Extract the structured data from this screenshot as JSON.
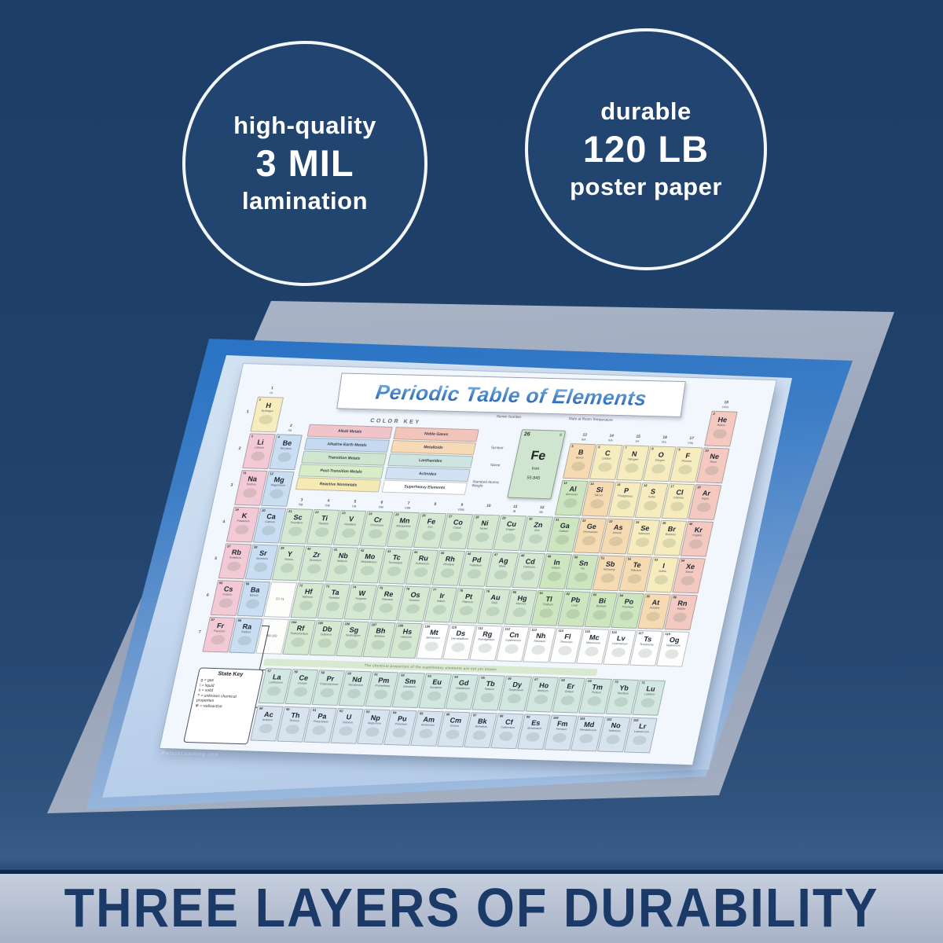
{
  "badges": {
    "left": {
      "line1": "high-quality",
      "line2": "3 MIL",
      "line3": "lamination"
    },
    "right": {
      "line1": "durable",
      "line2": "120 LB",
      "line3": "poster paper"
    }
  },
  "footer": {
    "headline": "THREE LAYERS OF DURABILITY"
  },
  "colors": {
    "background_navy": "#1d3e68",
    "band": "#b5bfd1",
    "band_text": "#1c3a68",
    "circle_ring": "#f4f7fa",
    "sheet_blue": "#2b74c5",
    "sheet_gray": "#9aa5ba",
    "sheet_pale": "#c2d6ee",
    "poster_bg": "#f2f7fd",
    "title_blue": "#2e6cb5"
  },
  "poster": {
    "title": "Periodic Table of Elements",
    "watermark": "PalaceLearning.com",
    "note": "The chemical properties of the superheavy elements are not yet known",
    "color_key": {
      "title": "COLOR KEY",
      "left": [
        {
          "label": "Alkali Metals",
          "color": "#f0c4c9"
        },
        {
          "label": "Alkaline Earth Metals",
          "color": "#c5daf1"
        },
        {
          "label": "Transition Metals",
          "color": "#cfe5cf"
        },
        {
          "label": "Post-Transition Metals",
          "color": "#d8ecc8"
        },
        {
          "label": "Reactive Nonmetals",
          "color": "#f6e9b4"
        }
      ],
      "right": [
        {
          "label": "Noble Gases",
          "color": "#f2c4ba"
        },
        {
          "label": "Metalloids",
          "color": "#f7d9b5"
        },
        {
          "label": "Lanthanides",
          "color": "#cde4e0"
        },
        {
          "label": "Actinides",
          "color": "#d3e2f2"
        },
        {
          "label": "Superheavy Elements",
          "color": "#ffffff"
        }
      ]
    },
    "legend": {
      "atomic_number_label": "Atomic Number",
      "state_label": "State at Room Temperature",
      "symbol_label": "Symbol",
      "name_label": "Name",
      "weight_label": "Standard Atomic Weight",
      "sample": {
        "number": "26",
        "state": "s",
        "symbol": "Fe",
        "name": "Iron",
        "weight": "55.845"
      }
    },
    "state_key": {
      "title": "State Key",
      "items": [
        "g = gas",
        "l = liquid",
        "s = solid",
        "? = unknown chemical properties",
        "☢ = radioactive"
      ]
    },
    "group_headers": [
      [
        "1",
        "IA"
      ],
      [
        "2",
        "IIA"
      ],
      [
        "3",
        "IIIB"
      ],
      [
        "4",
        "IVB"
      ],
      [
        "5",
        "VB"
      ],
      [
        "6",
        "VIB"
      ],
      [
        "7",
        "VIIB"
      ],
      [
        "8",
        ""
      ],
      [
        "9",
        "VIIIB"
      ],
      [
        "10",
        ""
      ],
      [
        "11",
        "IB"
      ],
      [
        "12",
        "IIB"
      ],
      [
        "13",
        "IIIA"
      ],
      [
        "14",
        "IVA"
      ],
      [
        "15",
        "VA"
      ],
      [
        "16",
        "VIA"
      ],
      [
        "17",
        "VIIA"
      ],
      [
        "18",
        "VIIIA"
      ]
    ],
    "periods": [
      "1",
      "2",
      "3",
      "4",
      "5",
      "6",
      "7"
    ],
    "gap_labels": [
      "57-71",
      "89-103"
    ],
    "category_colors": {
      "a": "#f2c9d4",
      "e": "#c9def3",
      "t": "#d5e8d2",
      "p": "#cde6bf",
      "m": "#f6dbb2",
      "n": "#f7ecbe",
      "g": "#f3c9c0",
      "h": "#fdfefd",
      "la": "#d2e7e0",
      "ac": "#d7e4f0"
    },
    "elements": [
      [
        1,
        "H",
        "Hydrogen",
        1,
        1,
        "n"
      ],
      [
        2,
        "He",
        "Helium",
        18,
        1,
        "g"
      ],
      [
        3,
        "Li",
        "Lithium",
        1,
        2,
        "a"
      ],
      [
        4,
        "Be",
        "Beryllium",
        2,
        2,
        "e"
      ],
      [
        5,
        "B",
        "Boron",
        13,
        2,
        "m"
      ],
      [
        6,
        "C",
        "Carbon",
        14,
        2,
        "n"
      ],
      [
        7,
        "N",
        "Nitrogen",
        15,
        2,
        "n"
      ],
      [
        8,
        "O",
        "Oxygen",
        16,
        2,
        "n"
      ],
      [
        9,
        "F",
        "Fluorine",
        17,
        2,
        "n"
      ],
      [
        10,
        "Ne",
        "Neon",
        18,
        2,
        "g"
      ],
      [
        11,
        "Na",
        "Sodium",
        1,
        3,
        "a"
      ],
      [
        12,
        "Mg",
        "Magnesium",
        2,
        3,
        "e"
      ],
      [
        13,
        "Al",
        "Aluminum",
        13,
        3,
        "p"
      ],
      [
        14,
        "Si",
        "Silicon",
        14,
        3,
        "m"
      ],
      [
        15,
        "P",
        "Phosphorus",
        15,
        3,
        "n"
      ],
      [
        16,
        "S",
        "Sulfur",
        16,
        3,
        "n"
      ],
      [
        17,
        "Cl",
        "Chlorine",
        17,
        3,
        "n"
      ],
      [
        18,
        "Ar",
        "Argon",
        18,
        3,
        "g"
      ],
      [
        19,
        "K",
        "Potassium",
        1,
        4,
        "a"
      ],
      [
        20,
        "Ca",
        "Calcium",
        2,
        4,
        "e"
      ],
      [
        21,
        "Sc",
        "Scandium",
        3,
        4,
        "t"
      ],
      [
        22,
        "Ti",
        "Titanium",
        4,
        4,
        "t"
      ],
      [
        23,
        "V",
        "Vanadium",
        5,
        4,
        "t"
      ],
      [
        24,
        "Cr",
        "Chromium",
        6,
        4,
        "t"
      ],
      [
        25,
        "Mn",
        "Manganese",
        7,
        4,
        "t"
      ],
      [
        26,
        "Fe",
        "Iron",
        8,
        4,
        "t"
      ],
      [
        27,
        "Co",
        "Cobalt",
        9,
        4,
        "t"
      ],
      [
        28,
        "Ni",
        "Nickel",
        10,
        4,
        "t"
      ],
      [
        29,
        "Cu",
        "Copper",
        11,
        4,
        "t"
      ],
      [
        30,
        "Zn",
        "Zinc",
        12,
        4,
        "t"
      ],
      [
        31,
        "Ga",
        "Gallium",
        13,
        4,
        "p"
      ],
      [
        32,
        "Ge",
        "Germanium",
        14,
        4,
        "m"
      ],
      [
        33,
        "As",
        "Arsenic",
        15,
        4,
        "m"
      ],
      [
        34,
        "Se",
        "Selenium",
        16,
        4,
        "n"
      ],
      [
        35,
        "Br",
        "Bromine",
        17,
        4,
        "n"
      ],
      [
        36,
        "Kr",
        "Krypton",
        18,
        4,
        "g"
      ],
      [
        37,
        "Rb",
        "Rubidium",
        1,
        5,
        "a"
      ],
      [
        38,
        "Sr",
        "Strontium",
        2,
        5,
        "e"
      ],
      [
        39,
        "Y",
        "Yttrium",
        3,
        5,
        "t"
      ],
      [
        40,
        "Zr",
        "Zirconium",
        4,
        5,
        "t"
      ],
      [
        41,
        "Nb",
        "Niobium",
        5,
        5,
        "t"
      ],
      [
        42,
        "Mo",
        "Molybdenum",
        6,
        5,
        "t"
      ],
      [
        43,
        "Tc",
        "Technetium",
        7,
        5,
        "t"
      ],
      [
        44,
        "Ru",
        "Ruthenium",
        8,
        5,
        "t"
      ],
      [
        45,
        "Rh",
        "Rhodium",
        9,
        5,
        "t"
      ],
      [
        46,
        "Pd",
        "Palladium",
        10,
        5,
        "t"
      ],
      [
        47,
        "Ag",
        "Silver",
        11,
        5,
        "t"
      ],
      [
        48,
        "Cd",
        "Cadmium",
        12,
        5,
        "t"
      ],
      [
        49,
        "In",
        "Indium",
        13,
        5,
        "p"
      ],
      [
        50,
        "Sn",
        "Tin",
        14,
        5,
        "p"
      ],
      [
        51,
        "Sb",
        "Antimony",
        15,
        5,
        "m"
      ],
      [
        52,
        "Te",
        "Tellurium",
        16,
        5,
        "m"
      ],
      [
        53,
        "I",
        "Iodine",
        17,
        5,
        "n"
      ],
      [
        54,
        "Xe",
        "Xenon",
        18,
        5,
        "g"
      ],
      [
        55,
        "Cs",
        "Cesium",
        1,
        6,
        "a"
      ],
      [
        56,
        "Ba",
        "Barium",
        2,
        6,
        "e"
      ],
      [
        72,
        "Hf",
        "Hafnium",
        4,
        6,
        "t"
      ],
      [
        73,
        "Ta",
        "Tantalum",
        5,
        6,
        "t"
      ],
      [
        74,
        "W",
        "Tungsten",
        6,
        6,
        "t"
      ],
      [
        75,
        "Re",
        "Rhenium",
        7,
        6,
        "t"
      ],
      [
        76,
        "Os",
        "Osmium",
        8,
        6,
        "t"
      ],
      [
        77,
        "Ir",
        "Iridium",
        9,
        6,
        "t"
      ],
      [
        78,
        "Pt",
        "Platinum",
        10,
        6,
        "t"
      ],
      [
        79,
        "Au",
        "Gold",
        11,
        6,
        "t"
      ],
      [
        80,
        "Hg",
        "Mercury",
        12,
        6,
        "t"
      ],
      [
        81,
        "Tl",
        "Thallium",
        13,
        6,
        "p"
      ],
      [
        82,
        "Pb",
        "Lead",
        14,
        6,
        "p"
      ],
      [
        83,
        "Bi",
        "Bismuth",
        15,
        6,
        "p"
      ],
      [
        84,
        "Po",
        "Polonium",
        16,
        6,
        "p"
      ],
      [
        85,
        "At",
        "Astatine",
        17,
        6,
        "m"
      ],
      [
        86,
        "Rn",
        "Radon",
        18,
        6,
        "g"
      ],
      [
        87,
        "Fr",
        "Francium",
        1,
        7,
        "a"
      ],
      [
        88,
        "Ra",
        "Radium",
        2,
        7,
        "e"
      ],
      [
        104,
        "Rf",
        "Rutherfordium",
        4,
        7,
        "t"
      ],
      [
        105,
        "Db",
        "Dubnium",
        5,
        7,
        "t"
      ],
      [
        106,
        "Sg",
        "Seaborgium",
        6,
        7,
        "t"
      ],
      [
        107,
        "Bh",
        "Bohrium",
        7,
        7,
        "t"
      ],
      [
        108,
        "Hs",
        "Hassium",
        8,
        7,
        "t"
      ],
      [
        109,
        "Mt",
        "Meitnerium",
        9,
        7,
        "h"
      ],
      [
        110,
        "Ds",
        "Darmstadtium",
        10,
        7,
        "h"
      ],
      [
        111,
        "Rg",
        "Roentgenium",
        11,
        7,
        "h"
      ],
      [
        112,
        "Cn",
        "Copernicium",
        12,
        7,
        "h"
      ],
      [
        113,
        "Nh",
        "Nihonium",
        13,
        7,
        "h"
      ],
      [
        114,
        "Fl",
        "Flerovium",
        14,
        7,
        "h"
      ],
      [
        115,
        "Mc",
        "Moscovium",
        15,
        7,
        "h"
      ],
      [
        116,
        "Lv",
        "Livermorium",
        16,
        7,
        "h"
      ],
      [
        117,
        "Ts",
        "Tennessine",
        17,
        7,
        "h"
      ],
      [
        118,
        "Og",
        "Oganesson",
        18,
        7,
        "h"
      ]
    ],
    "lanthanides": [
      [
        57,
        "La",
        "Lanthanum",
        0,
        0,
        "la"
      ],
      [
        58,
        "Ce",
        "Cerium",
        0,
        0,
        "la"
      ],
      [
        59,
        "Pr",
        "Praseodymium",
        0,
        0,
        "la"
      ],
      [
        60,
        "Nd",
        "Neodymium",
        0,
        0,
        "la"
      ],
      [
        61,
        "Pm",
        "Promethium",
        0,
        0,
        "la"
      ],
      [
        62,
        "Sm",
        "Samarium",
        0,
        0,
        "la"
      ],
      [
        63,
        "Eu",
        "Europium",
        0,
        0,
        "la"
      ],
      [
        64,
        "Gd",
        "Gadolinium",
        0,
        0,
        "la"
      ],
      [
        65,
        "Tb",
        "Terbium",
        0,
        0,
        "la"
      ],
      [
        66,
        "Dy",
        "Dysprosium",
        0,
        0,
        "la"
      ],
      [
        67,
        "Ho",
        "Holmium",
        0,
        0,
        "la"
      ],
      [
        68,
        "Er",
        "Erbium",
        0,
        0,
        "la"
      ],
      [
        69,
        "Tm",
        "Thulium",
        0,
        0,
        "la"
      ],
      [
        70,
        "Yb",
        "Ytterbium",
        0,
        0,
        "la"
      ],
      [
        71,
        "Lu",
        "Lutetium",
        0,
        0,
        "la"
      ]
    ],
    "actinides": [
      [
        89,
        "Ac",
        "Actinium",
        0,
        0,
        "ac"
      ],
      [
        90,
        "Th",
        "Thorium",
        0,
        0,
        "ac"
      ],
      [
        91,
        "Pa",
        "Protactinium",
        0,
        0,
        "ac"
      ],
      [
        92,
        "U",
        "Uranium",
        0,
        0,
        "ac"
      ],
      [
        93,
        "Np",
        "Neptunium",
        0,
        0,
        "ac"
      ],
      [
        94,
        "Pu",
        "Plutonium",
        0,
        0,
        "ac"
      ],
      [
        95,
        "Am",
        "Americium",
        0,
        0,
        "ac"
      ],
      [
        96,
        "Cm",
        "Curium",
        0,
        0,
        "ac"
      ],
      [
        97,
        "Bk",
        "Berkelium",
        0,
        0,
        "ac"
      ],
      [
        98,
        "Cf",
        "Californium",
        0,
        0,
        "ac"
      ],
      [
        99,
        "Es",
        "Einsteinium",
        0,
        0,
        "ac"
      ],
      [
        100,
        "Fm",
        "Fermium",
        0,
        0,
        "ac"
      ],
      [
        101,
        "Md",
        "Mendelevium",
        0,
        0,
        "ac"
      ],
      [
        102,
        "No",
        "Nobelium",
        0,
        0,
        "ac"
      ],
      [
        103,
        "Lr",
        "Lawrencium",
        0,
        0,
        "ac"
      ]
    ]
  }
}
